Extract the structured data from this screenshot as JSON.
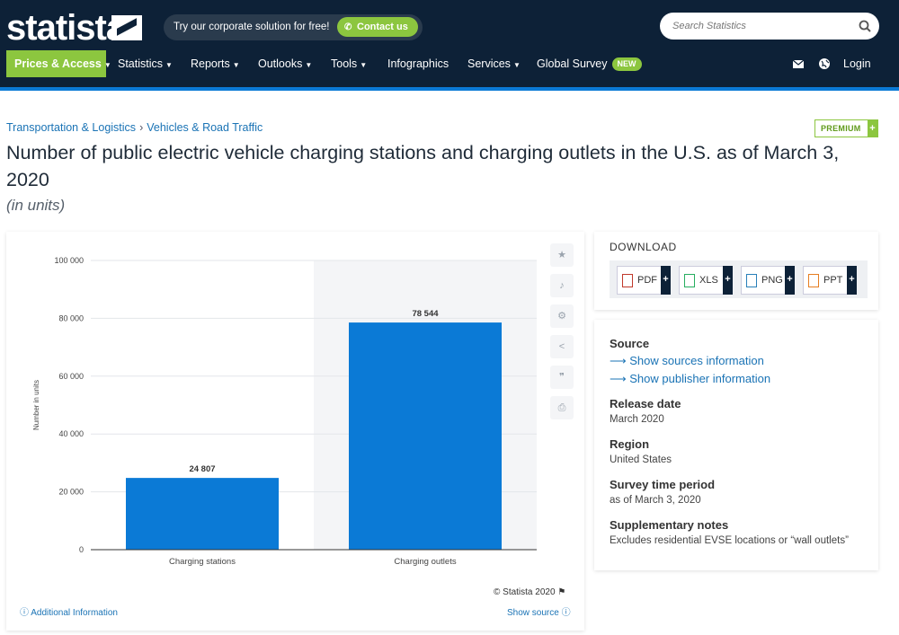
{
  "header": {
    "logo": "statista",
    "promo_text": "Try our corporate solution for free!",
    "contact_label": "Contact us",
    "search_placeholder": "Search Statistics",
    "nav": [
      {
        "label": "Prices & Access",
        "dropdown": true
      },
      {
        "label": "Statistics",
        "dropdown": true
      },
      {
        "label": "Reports",
        "dropdown": true
      },
      {
        "label": "Outlooks",
        "dropdown": true
      },
      {
        "label": "Tools",
        "dropdown": true
      },
      {
        "label": "Infographics",
        "dropdown": false
      },
      {
        "label": "Services",
        "dropdown": true
      },
      {
        "label": "Global Survey",
        "dropdown": false,
        "badge": "NEW"
      }
    ],
    "login_label": "Login"
  },
  "breadcrumb": [
    "Transportation & Logistics",
    "Vehicles & Road Traffic"
  ],
  "premium_label": "PREMIUM",
  "title": "Number of public electric vehicle charging stations and charging outlets in the U.S. as of March 3, 2020",
  "subtitle": "(in units)",
  "chart_data": {
    "type": "bar",
    "categories": [
      "Charging stations",
      "Charging outlets"
    ],
    "values": [
      24807,
      78544
    ],
    "value_labels": [
      "24 807",
      "78 544"
    ],
    "ylabel": "Number in units",
    "ylim": [
      0,
      100000
    ],
    "yticks": [
      0,
      20000,
      40000,
      60000,
      80000,
      100000
    ],
    "ytick_labels": [
      "0",
      "20 000",
      "40 000",
      "60 000",
      "80 000",
      "100 000"
    ],
    "bar_color": "#0b7ad6",
    "grid": true
  },
  "chart_footer": {
    "copyright": "© Statista 2020",
    "additional_info": "Additional Information",
    "show_source": "Show source"
  },
  "download": {
    "title": "DOWNLOAD",
    "formats": [
      "PDF",
      "XLS",
      "PNG",
      "PPT"
    ]
  },
  "info": {
    "source_label": "Source",
    "show_sources": "Show sources information",
    "show_publisher": "Show publisher information",
    "release_label": "Release date",
    "release_value": "March 2020",
    "region_label": "Region",
    "region_value": "United States",
    "period_label": "Survey time period",
    "period_value": "as of March 3, 2020",
    "notes_label": "Supplementary notes",
    "notes_value": "Excludes residential EVSE locations or “wall outlets”"
  },
  "colors": {
    "brand_dark": "#0d2137",
    "accent_green": "#8cc63f",
    "accent_blue": "#0b7ad6",
    "link": "#1a73b5"
  }
}
